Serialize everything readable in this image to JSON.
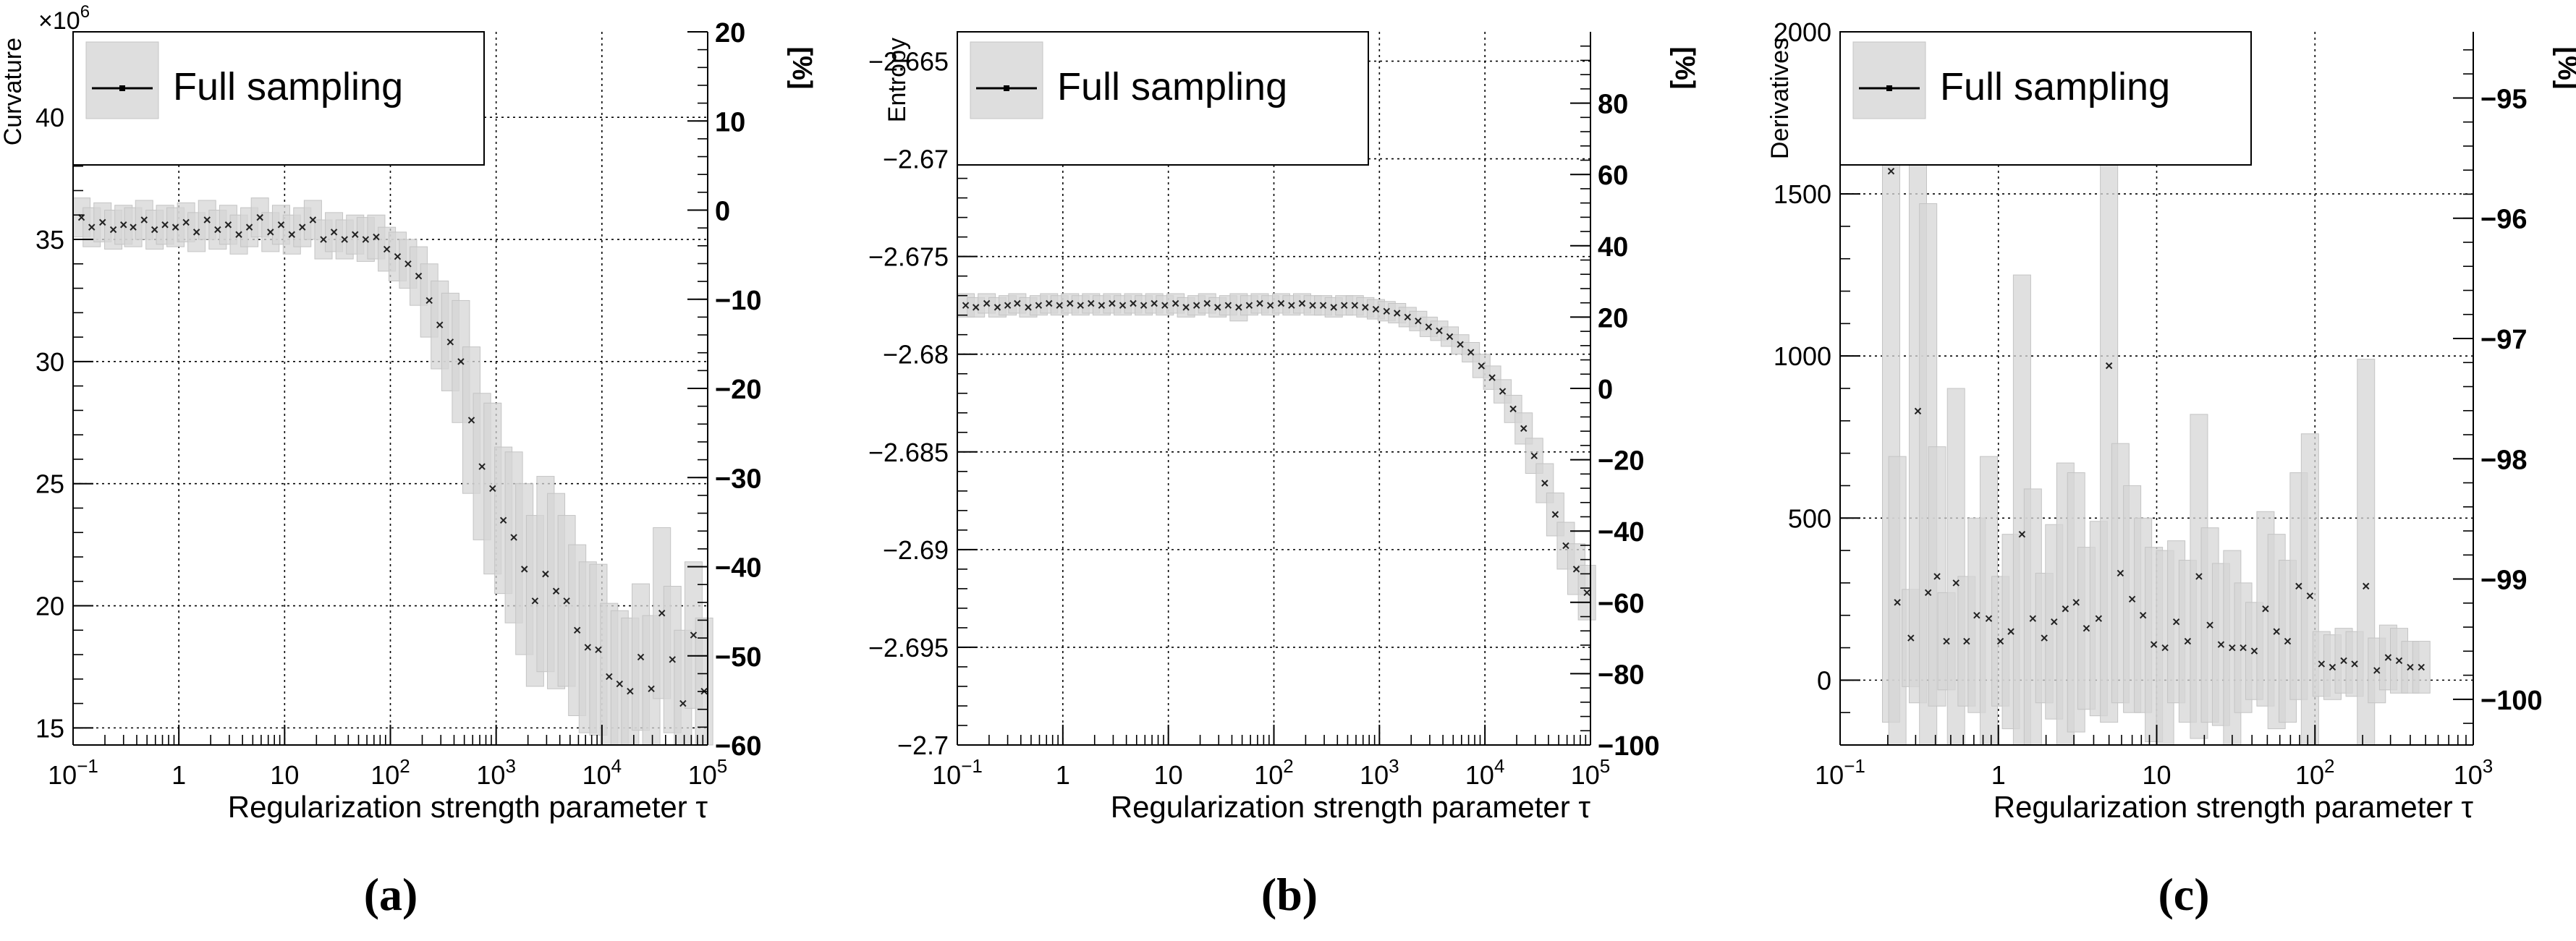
{
  "figure": {
    "captions": [
      "(a)",
      "(b)",
      "(c)"
    ]
  },
  "chart_data": [
    {
      "type": "scatter",
      "panel": "a",
      "xscale": "log",
      "xlim": [
        0.1,
        100000
      ],
      "ylim": [
        14.3,
        43.5
      ],
      "y2lim": [
        -60,
        20
      ],
      "ylabel": "Curvature",
      "y_multiplier_label": "×10",
      "y_multiplier_exp": "6",
      "y2label": "[%]",
      "xlabel": "Regularization strength parameter τ",
      "legend": "Full sampling",
      "x_ticks": [
        {
          "v": 0.1,
          "base": "10",
          "exp": "−1"
        },
        {
          "v": 1,
          "base": "1",
          "exp": ""
        },
        {
          "v": 10,
          "base": "10",
          "exp": ""
        },
        {
          "v": 100,
          "base": "10",
          "exp": "2"
        },
        {
          "v": 1000,
          "base": "10",
          "exp": "3"
        },
        {
          "v": 10000,
          "base": "10",
          "exp": "4"
        },
        {
          "v": 100000,
          "base": "10",
          "exp": "5"
        }
      ],
      "y_ticks": [
        {
          "v": 15,
          "l": "15"
        },
        {
          "v": 20,
          "l": "20"
        },
        {
          "v": 25,
          "l": "25"
        },
        {
          "v": 30,
          "l": "30"
        },
        {
          "v": 35,
          "l": "35"
        },
        {
          "v": 40,
          "l": "40"
        }
      ],
      "y2_ticks": [
        {
          "v": 20,
          "l": "20"
        },
        {
          "v": 10,
          "l": "10"
        },
        {
          "v": 0,
          "l": "0"
        },
        {
          "v": -10,
          "l": "−10"
        },
        {
          "v": -20,
          "l": "−20"
        },
        {
          "v": -30,
          "l": "−30"
        },
        {
          "v": -40,
          "l": "−40"
        },
        {
          "v": -50,
          "l": "−50"
        },
        {
          "v": -60,
          "l": "−60"
        }
      ],
      "points": [
        [
          0.12,
          35.9,
          0.8
        ],
        [
          0.15,
          35.5,
          0.8
        ],
        [
          0.19,
          35.7,
          0.8
        ],
        [
          0.24,
          35.4,
          0.8
        ],
        [
          0.3,
          35.6,
          0.8
        ],
        [
          0.37,
          35.5,
          0.8
        ],
        [
          0.47,
          35.8,
          0.8
        ],
        [
          0.59,
          35.4,
          0.8
        ],
        [
          0.74,
          35.6,
          0.8
        ],
        [
          0.93,
          35.5,
          0.8
        ],
        [
          1.17,
          35.7,
          0.8
        ],
        [
          1.47,
          35.3,
          0.8
        ],
        [
          1.85,
          35.8,
          0.8
        ],
        [
          2.33,
          35.4,
          0.8
        ],
        [
          2.93,
          35.6,
          0.8
        ],
        [
          3.69,
          35.2,
          0.8
        ],
        [
          4.64,
          35.5,
          0.8
        ],
        [
          5.84,
          35.9,
          0.8
        ],
        [
          7.35,
          35.3,
          0.8
        ],
        [
          9.26,
          35.6,
          0.8
        ],
        [
          11.7,
          35.2,
          0.8
        ],
        [
          14.7,
          35.5,
          0.8
        ],
        [
          18.5,
          35.8,
          0.8
        ],
        [
          23.3,
          35.0,
          0.8
        ],
        [
          29.3,
          35.3,
          0.8
        ],
        [
          36.9,
          35.0,
          0.8
        ],
        [
          46.4,
          35.2,
          0.8
        ],
        [
          58.4,
          35.0,
          0.9
        ],
        [
          73.5,
          35.1,
          0.9
        ],
        [
          92.6,
          34.6,
          0.9
        ],
        [
          117,
          34.3,
          1.0
        ],
        [
          147,
          34.0,
          1.0
        ],
        [
          185,
          33.5,
          1.2
        ],
        [
          233,
          32.5,
          1.5
        ],
        [
          293,
          31.5,
          1.8
        ],
        [
          369,
          30.8,
          2.0
        ],
        [
          464,
          30.0,
          2.5
        ],
        [
          584,
          27.6,
          3.0
        ],
        [
          735,
          25.7,
          3.0
        ],
        [
          926,
          24.8,
          3.5
        ],
        [
          1170,
          23.5,
          3.0
        ],
        [
          1470,
          22.8,
          3.5
        ],
        [
          1850,
          21.5,
          3.5
        ],
        [
          2330,
          20.2,
          3.5
        ],
        [
          2930,
          21.3,
          4.0
        ],
        [
          3690,
          20.6,
          4.0
        ],
        [
          4640,
          20.2,
          3.5
        ],
        [
          5840,
          19.0,
          3.5
        ],
        [
          7350,
          18.3,
          3.5
        ],
        [
          9260,
          18.2,
          3.5
        ],
        [
          11700,
          17.1,
          3.0
        ],
        [
          14700,
          16.8,
          3.0
        ],
        [
          18500,
          16.5,
          3.0
        ],
        [
          23300,
          17.9,
          3.0
        ],
        [
          29300,
          16.6,
          3.0
        ],
        [
          36900,
          19.7,
          3.5
        ],
        [
          46400,
          17.8,
          3.0
        ],
        [
          58400,
          16.0,
          3.0
        ],
        [
          73500,
          18.8,
          3.0
        ],
        [
          92600,
          16.5,
          3.0
        ]
      ]
    },
    {
      "type": "scatter",
      "panel": "b",
      "xscale": "log",
      "xlim": [
        0.1,
        100000
      ],
      "ylim": [
        -2.7,
        -2.6635
      ],
      "y2lim": [
        -100,
        100
      ],
      "ylabel": "Entropy",
      "y2label": "[%]",
      "xlabel": "Regularization strength parameter τ",
      "legend": "Full sampling",
      "x_ticks": [
        {
          "v": 0.1,
          "base": "10",
          "exp": "−1"
        },
        {
          "v": 1,
          "base": "1",
          "exp": ""
        },
        {
          "v": 10,
          "base": "10",
          "exp": ""
        },
        {
          "v": 100,
          "base": "10",
          "exp": "2"
        },
        {
          "v": 1000,
          "base": "10",
          "exp": "3"
        },
        {
          "v": 10000,
          "base": "10",
          "exp": "4"
        },
        {
          "v": 100000,
          "base": "10",
          "exp": "5"
        }
      ],
      "y_ticks": [
        {
          "v": -2.7,
          "l": "−2.7"
        },
        {
          "v": -2.695,
          "l": "−2.695"
        },
        {
          "v": -2.69,
          "l": "−2.69"
        },
        {
          "v": -2.685,
          "l": "−2.685"
        },
        {
          "v": -2.68,
          "l": "−2.68"
        },
        {
          "v": -2.675,
          "l": "−2.675"
        },
        {
          "v": -2.67,
          "l": "−2.67"
        },
        {
          "v": -2.665,
          "l": "−2.665"
        }
      ],
      "y2_ticks": [
        {
          "v": 80,
          "l": "80"
        },
        {
          "v": 60,
          "l": "60"
        },
        {
          "v": 40,
          "l": "40"
        },
        {
          "v": 20,
          "l": "20"
        },
        {
          "v": 0,
          "l": "0"
        },
        {
          "v": -20,
          "l": "−20"
        },
        {
          "v": -40,
          "l": "−40"
        },
        {
          "v": -60,
          "l": "−60"
        },
        {
          "v": -80,
          "l": "−80"
        },
        {
          "v": -100,
          "l": "−100"
        }
      ],
      "points": [
        [
          0.12,
          -2.6775,
          0.0006
        ],
        [
          0.15,
          -2.6776,
          0.0005
        ],
        [
          0.19,
          -2.6774,
          0.0005
        ],
        [
          0.24,
          -2.6776,
          0.0005
        ],
        [
          0.3,
          -2.6775,
          0.0005
        ],
        [
          0.37,
          -2.6774,
          0.0005
        ],
        [
          0.47,
          -2.6776,
          0.0005
        ],
        [
          0.59,
          -2.6775,
          0.0005
        ],
        [
          0.74,
          -2.6774,
          0.0005
        ],
        [
          0.93,
          -2.6775,
          0.0005
        ],
        [
          1.17,
          -2.6774,
          0.0005
        ],
        [
          1.47,
          -2.6775,
          0.0005
        ],
        [
          1.85,
          -2.6774,
          0.0005
        ],
        [
          2.33,
          -2.6775,
          0.0005
        ],
        [
          2.93,
          -2.6774,
          0.0005
        ],
        [
          3.69,
          -2.6775,
          0.0005
        ],
        [
          4.64,
          -2.6774,
          0.0005
        ],
        [
          5.84,
          -2.6775,
          0.0005
        ],
        [
          7.35,
          -2.6774,
          0.0005
        ],
        [
          9.26,
          -2.6775,
          0.0005
        ],
        [
          11.7,
          -2.6774,
          0.0005
        ],
        [
          14.7,
          -2.6776,
          0.0005
        ],
        [
          18.5,
          -2.6775,
          0.0005
        ],
        [
          23.3,
          -2.6774,
          0.0005
        ],
        [
          29.3,
          -2.6776,
          0.0005
        ],
        [
          36.9,
          -2.6775,
          0.0005
        ],
        [
          46.4,
          -2.6776,
          0.0007
        ],
        [
          58.4,
          -2.6775,
          0.0005
        ],
        [
          73.5,
          -2.6774,
          0.0005
        ],
        [
          92.6,
          -2.6775,
          0.0005
        ],
        [
          117,
          -2.6774,
          0.0005
        ],
        [
          147,
          -2.6775,
          0.0005
        ],
        [
          185,
          -2.6774,
          0.0005
        ],
        [
          233,
          -2.6775,
          0.0005
        ],
        [
          293,
          -2.6775,
          0.0005
        ],
        [
          369,
          -2.6776,
          0.0005
        ],
        [
          464,
          -2.6775,
          0.0005
        ],
        [
          584,
          -2.6775,
          0.0005
        ],
        [
          735,
          -2.6776,
          0.0005
        ],
        [
          926,
          -2.6777,
          0.0005
        ],
        [
          1170,
          -2.6778,
          0.0005
        ],
        [
          1470,
          -2.6779,
          0.0005
        ],
        [
          1850,
          -2.6781,
          0.0005
        ],
        [
          2330,
          -2.6783,
          0.0005
        ],
        [
          2930,
          -2.6786,
          0.0005
        ],
        [
          3690,
          -2.6788,
          0.0005
        ],
        [
          4640,
          -2.6791,
          0.0005
        ],
        [
          5840,
          -2.6795,
          0.0005
        ],
        [
          7350,
          -2.6799,
          0.0005
        ],
        [
          9260,
          -2.6806,
          0.0006
        ],
        [
          11700,
          -2.6812,
          0.0006
        ],
        [
          14700,
          -2.6819,
          0.0006
        ],
        [
          18500,
          -2.6828,
          0.0007
        ],
        [
          23300,
          -2.6838,
          0.0008
        ],
        [
          29300,
          -2.6852,
          0.0009
        ],
        [
          36900,
          -2.6866,
          0.001
        ],
        [
          46400,
          -2.6882,
          0.0011
        ],
        [
          58400,
          -2.6898,
          0.0012
        ],
        [
          73500,
          -2.691,
          0.0013
        ],
        [
          92600,
          -2.6922,
          0.0014
        ]
      ]
    },
    {
      "type": "scatter",
      "panel": "c",
      "xscale": "log",
      "xlim": [
        0.1,
        1000
      ],
      "ylim": [
        -200,
        2000
      ],
      "y2lim": [
        -100.38,
        -94.45
      ],
      "ylabel": "Derivatives",
      "y2label": "[%]",
      "xlabel": "Regularization strength parameter τ",
      "legend": "Full sampling",
      "x_ticks": [
        {
          "v": 0.1,
          "base": "10",
          "exp": "−1"
        },
        {
          "v": 1,
          "base": "1",
          "exp": ""
        },
        {
          "v": 10,
          "base": "10",
          "exp": ""
        },
        {
          "v": 100,
          "base": "10",
          "exp": "2"
        },
        {
          "v": 1000,
          "base": "10",
          "exp": "3"
        }
      ],
      "y_ticks": [
        {
          "v": 0,
          "l": "0"
        },
        {
          "v": 500,
          "l": "500"
        },
        {
          "v": 1000,
          "l": "1000"
        },
        {
          "v": 1500,
          "l": "1500"
        },
        {
          "v": 2000,
          "l": "2000"
        }
      ],
      "y2_ticks": [
        {
          "v": -95,
          "l": "−95"
        },
        {
          "v": -96,
          "l": "−96"
        },
        {
          "v": -97,
          "l": "−97"
        },
        {
          "v": -98,
          "l": "−98"
        },
        {
          "v": -99,
          "l": "−99"
        },
        {
          "v": -100,
          "l": "−100"
        }
      ],
      "points": [
        [
          0.21,
          1570,
          1700
        ],
        [
          0.23,
          240,
          450
        ],
        [
          0.28,
          130,
          150
        ],
        [
          0.31,
          830,
          900
        ],
        [
          0.36,
          270,
          1200
        ],
        [
          0.41,
          320,
          400
        ],
        [
          0.47,
          120,
          150
        ],
        [
          0.54,
          300,
          600
        ],
        [
          0.63,
          120,
          200
        ],
        [
          0.73,
          200,
          300
        ],
        [
          0.87,
          190,
          500
        ],
        [
          1.03,
          120,
          200
        ],
        [
          1.2,
          150,
          300
        ],
        [
          1.41,
          450,
          800
        ],
        [
          1.65,
          190,
          400
        ],
        [
          1.95,
          130,
          200
        ],
        [
          2.25,
          180,
          300
        ],
        [
          2.65,
          220,
          450
        ],
        [
          3.1,
          240,
          400
        ],
        [
          3.6,
          160,
          250
        ],
        [
          4.3,
          190,
          300
        ],
        [
          5.0,
          970,
          1100
        ],
        [
          5.9,
          330,
          400
        ],
        [
          7.0,
          250,
          350
        ],
        [
          8.2,
          200,
          300
        ],
        [
          9.6,
          110,
          300
        ],
        [
          11.3,
          100,
          300
        ],
        [
          13.3,
          180,
          250
        ],
        [
          15.7,
          120,
          250
        ],
        [
          18.5,
          320,
          500
        ],
        [
          21.7,
          170,
          300
        ],
        [
          25.5,
          110,
          250
        ],
        [
          30.0,
          100,
          300
        ],
        [
          35.2,
          100,
          200
        ],
        [
          41.4,
          90,
          150
        ],
        [
          48.7,
          220,
          300
        ],
        [
          57.2,
          150,
          300
        ],
        [
          67.2,
          120,
          250
        ],
        [
          79,
          290,
          350
        ],
        [
          93,
          260,
          500
        ],
        [
          110,
          50,
          100
        ],
        [
          129,
          40,
          100
        ],
        [
          152,
          60,
          100
        ],
        [
          178,
          50,
          100
        ],
        [
          210,
          290,
          700
        ],
        [
          246,
          30,
          100
        ],
        [
          290,
          70,
          100
        ],
        [
          340,
          60,
          100
        ],
        [
          400,
          40,
          80
        ],
        [
          470,
          40,
          80
        ]
      ]
    }
  ]
}
